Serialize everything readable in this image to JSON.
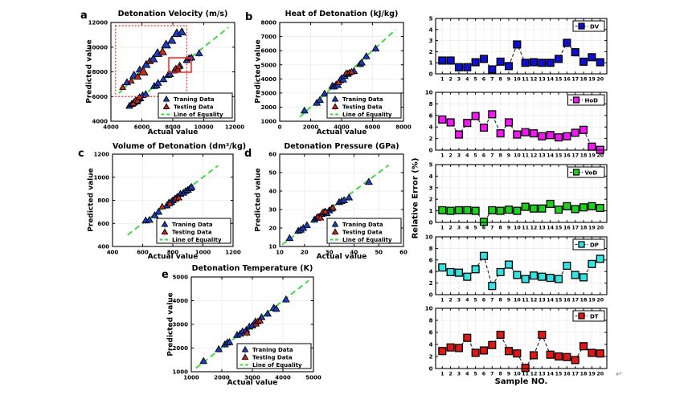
{
  "colors": {
    "train_marker": "#1f3dc2",
    "test_marker": "#c8281e",
    "train_stem": "#18c8e8",
    "test_stem": "#ff8c1e",
    "equality_line": "#3bda3b",
    "grid": "#ebebeb",
    "box": "#000000",
    "error_line": "#222222",
    "inset_box": "#ff2020",
    "dv": "#0f0fd0",
    "hod": "#f318f3",
    "vod": "#1fd01f",
    "dp": "#35e3e3",
    "dt": "#e01717"
  },
  "chart_data": {
    "scatter": [
      {
        "type": "scatter",
        "letter": "a",
        "title": "Detonation Velocity (m/s)",
        "xlabel": "Actual value",
        "ylabel": "Predicted value",
        "xlim": [
          4000,
          12000
        ],
        "ylim": [
          4000,
          12000
        ],
        "xticks": [
          4000,
          6000,
          8000,
          10000,
          12000
        ],
        "yticks": [
          4000,
          6000,
          8000,
          10000,
          12000
        ],
        "line_range": [
          5000,
          11600
        ],
        "legend": [
          "Traning Data",
          "Testing Data",
          "Line of Equality"
        ],
        "series": [
          {
            "name": "Traning Data",
            "points": [
              [
                5200,
                5250
              ],
              [
                5350,
                5400
              ],
              [
                5500,
                5550
              ],
              [
                5650,
                5600
              ],
              [
                5750,
                5800
              ],
              [
                5900,
                5850
              ],
              [
                6050,
                6100
              ],
              [
                6250,
                6200
              ],
              [
                6800,
                6850
              ],
              [
                6950,
                6900
              ],
              [
                7050,
                7100
              ],
              [
                7400,
                7400
              ],
              [
                7700,
                7750
              ],
              [
                7820,
                7800
              ],
              [
                8100,
                8100
              ],
              [
                8450,
                8500
              ],
              [
                8900,
                8950
              ],
              [
                9050,
                9100
              ],
              [
                9200,
                9150
              ],
              [
                9700,
                9500
              ]
            ]
          },
          {
            "name": "Testing Data",
            "points": [
              [
                5450,
                5450
              ],
              [
                5600,
                5700
              ],
              [
                5720,
                5650
              ],
              [
                5850,
                5950
              ],
              [
                8200,
                8280
              ],
              [
                8320,
                8220
              ],
              [
                8400,
                8420
              ]
            ]
          }
        ],
        "inset": {
          "zoom_rect_data": [
            4300,
            6000,
            8900,
            11740
          ],
          "source_rect_data": [
            7740,
            7968,
            9195,
            9139
          ],
          "points": [
            {
              "fx": 0.1,
              "fy": 0.13,
              "s": 6,
              "t": "test"
            },
            {
              "fx": 0.16,
              "fy": 0.2,
              "s": 7,
              "t": "train"
            },
            {
              "fx": 0.22,
              "fy": 0.22,
              "s": 6,
              "t": "test"
            },
            {
              "fx": 0.26,
              "fy": 0.3,
              "s": 8,
              "t": "train"
            },
            {
              "fx": 0.31,
              "fy": 0.28,
              "s": 7,
              "t": "test"
            },
            {
              "fx": 0.34,
              "fy": 0.38,
              "s": 7,
              "t": "train"
            },
            {
              "fx": 0.39,
              "fy": 0.35,
              "s": 9,
              "t": "test"
            },
            {
              "fx": 0.43,
              "fy": 0.45,
              "s": 8,
              "t": "train"
            },
            {
              "fx": 0.48,
              "fy": 0.5,
              "s": 7,
              "t": "test"
            },
            {
              "fx": 0.53,
              "fy": 0.53,
              "s": 8,
              "t": "train"
            },
            {
              "fx": 0.59,
              "fy": 0.61,
              "s": 9,
              "t": "train"
            },
            {
              "fx": 0.66,
              "fy": 0.63,
              "s": 8,
              "t": "test"
            },
            {
              "fx": 0.71,
              "fy": 0.73,
              "s": 9,
              "t": "train"
            },
            {
              "fx": 0.79,
              "fy": 0.79,
              "s": 8,
              "t": "train"
            },
            {
              "fx": 0.86,
              "fy": 0.89,
              "s": 9,
              "t": "train"
            },
            {
              "fx": 0.93,
              "fy": 0.91,
              "s": 8,
              "t": "train"
            }
          ]
        }
      },
      {
        "type": "scatter",
        "letter": "b",
        "title": "Heat of Detonation (kJ/kg)",
        "xlabel": "Actual value",
        "ylabel": "Predicted value",
        "xlim": [
          0,
          8000
        ],
        "ylim": [
          1000,
          8000
        ],
        "xticks": [
          0,
          2000,
          4000,
          6000,
          8000
        ],
        "yticks": [
          1000,
          2000,
          3000,
          4000,
          5000,
          6000,
          7000,
          8000
        ],
        "line_range": [
          1300,
          7500
        ],
        "legend": [
          "Traning Data",
          "Testing Data",
          "Line of Equality"
        ],
        "series": [
          {
            "name": "Traning Data",
            "points": [
              [
                1600,
                1750
              ],
              [
                2400,
                2300
              ],
              [
                2600,
                2500
              ],
              [
                2900,
                2950
              ],
              [
                3400,
                3500
              ],
              [
                3500,
                3450
              ],
              [
                3650,
                3600
              ],
              [
                3750,
                3550
              ],
              [
                3900,
                3900
              ],
              [
                4000,
                4050
              ],
              [
                4100,
                3950
              ],
              [
                4200,
                4200
              ],
              [
                4400,
                4350
              ],
              [
                4800,
                4550
              ],
              [
                5200,
                5050
              ],
              [
                5300,
                5150
              ],
              [
                5600,
                5600
              ],
              [
                6200,
                6150
              ]
            ]
          },
          {
            "name": "Testing Data",
            "points": [
              [
                3800,
                3750
              ],
              [
                4300,
                4400
              ],
              [
                4500,
                4450
              ],
              [
                4650,
                4500
              ]
            ]
          }
        ]
      },
      {
        "type": "scatter",
        "letter": "c",
        "title": "Volume of Detonation (dm³/kg)",
        "xlabel": "Actual value",
        "ylabel": "Predicted value",
        "xlim": [
          400,
          1200
        ],
        "ylim": [
          400,
          1200
        ],
        "xticks": [
          400,
          600,
          800,
          1000,
          1200
        ],
        "yticks": [
          400,
          600,
          800,
          1000,
          1200
        ],
        "line_range": [
          500,
          1100
        ],
        "legend": [
          "Traning Data",
          "Testing Data",
          "Line of Equality"
        ],
        "series": [
          {
            "name": "Traning Data",
            "points": [
              [
                620,
                625
              ],
              [
                645,
                630
              ],
              [
                680,
                670
              ],
              [
                705,
                700
              ],
              [
                760,
                755
              ],
              [
                775,
                780
              ],
              [
                790,
                785
              ],
              [
                800,
                800
              ],
              [
                815,
                815
              ],
              [
                830,
                830
              ],
              [
                850,
                855
              ],
              [
                870,
                865
              ],
              [
                885,
                880
              ],
              [
                900,
                890
              ],
              [
                915,
                905
              ],
              [
                925,
                915
              ]
            ]
          },
          {
            "name": "Testing Data",
            "points": [
              [
                730,
                745
              ],
              [
                780,
                772
              ],
              [
                820,
                812
              ],
              [
                840,
                822
              ]
            ]
          }
        ]
      },
      {
        "type": "scatter",
        "letter": "d",
        "title": "Detonation Pressure (GPa)",
        "xlabel": "Actual value",
        "ylabel": "Predicted value",
        "xlim": [
          10,
          60
        ],
        "ylim": [
          10,
          60
        ],
        "xticks": [
          10,
          20,
          30,
          40,
          50,
          60
        ],
        "yticks": [
          10,
          20,
          30,
          40,
          50,
          60
        ],
        "line_range": [
          11,
          54
        ],
        "legend": [
          "Traning Data",
          "Testing Data",
          "Line of Equality"
        ],
        "series": [
          {
            "name": "Traning Data",
            "points": [
              [
                14,
                14.5
              ],
              [
                17.5,
                18.5
              ],
              [
                18.5,
                19
              ],
              [
                19.5,
                20
              ],
              [
                21,
                21.5
              ],
              [
                24,
                24.5
              ],
              [
                25,
                25.5
              ],
              [
                26,
                26
              ],
              [
                27,
                27.5
              ],
              [
                28,
                28.5
              ],
              [
                29,
                28
              ],
              [
                30,
                29.5
              ],
              [
                31,
                30.5
              ],
              [
                34,
                34
              ],
              [
                35,
                34.5
              ],
              [
                36,
                35
              ],
              [
                38,
                36.5
              ],
              [
                46,
                45
              ]
            ]
          },
          {
            "name": "Testing Data",
            "points": [
              [
                25.5,
                26
              ],
              [
                26.5,
                25.5
              ],
              [
                27.5,
                28.5
              ],
              [
                28.5,
                29
              ],
              [
                31.5,
                31
              ]
            ]
          }
        ]
      },
      {
        "type": "scatter",
        "letter": "e",
        "title": "Detonation Temperature (K)",
        "xlabel": "Actual value",
        "ylabel": "Predicted value",
        "xlim": [
          1000,
          5000
        ],
        "ylim": [
          1000,
          5000
        ],
        "xticks": [
          1000,
          2000,
          3000,
          4000,
          5000
        ],
        "yticks": [
          1000,
          2000,
          3000,
          4000,
          5000
        ],
        "line_range": [
          1150,
          4850
        ],
        "legend": [
          "Traning Data",
          "Testing Data",
          "Line of Equality"
        ],
        "series": [
          {
            "name": "Traning Data",
            "points": [
              [
                1400,
                1450
              ],
              [
                1900,
                1950
              ],
              [
                2100,
                2150
              ],
              [
                2180,
                2230
              ],
              [
                2250,
                2250
              ],
              [
                2500,
                2550
              ],
              [
                2600,
                2600
              ],
              [
                2680,
                2700
              ],
              [
                2800,
                2760
              ],
              [
                2900,
                2900
              ],
              [
                3000,
                2950
              ],
              [
                3100,
                3120
              ],
              [
                3300,
                3300
              ],
              [
                3500,
                3450
              ],
              [
                3700,
                3700
              ],
              [
                3780,
                3650
              ],
              [
                4100,
                4050
              ]
            ]
          },
          {
            "name": "Testing Data",
            "points": [
              [
                2820,
                2640
              ],
              [
                3120,
                3020
              ],
              [
                3180,
                3120
              ],
              [
                3250,
                3150
              ]
            ]
          }
        ]
      }
    ],
    "error_common": {
      "xlabel": "Sample NO.",
      "ylabel": "Relative Error (%)",
      "samples": [
        1,
        2,
        3,
        4,
        5,
        6,
        7,
        8,
        9,
        10,
        11,
        12,
        13,
        14,
        15,
        16,
        17,
        18,
        19,
        20
      ]
    },
    "error": [
      {
        "type": "line",
        "label": "DV",
        "color_key": "dv",
        "ylim": [
          0,
          5
        ],
        "yticks": [
          0,
          1,
          2,
          3,
          4,
          5
        ],
        "values": [
          1.2,
          1.2,
          0.6,
          0.6,
          1.05,
          1.35,
          0.4,
          1.1,
          0.7,
          2.65,
          1.0,
          1.05,
          1.0,
          1.0,
          1.35,
          2.8,
          1.95,
          1.1,
          1.5,
          1.05
        ]
      },
      {
        "type": "line",
        "label": "HoD",
        "color_key": "hod",
        "ylim": [
          0,
          10
        ],
        "yticks": [
          0,
          2,
          4,
          6,
          8,
          10
        ],
        "values": [
          5.3,
          4.8,
          2.7,
          4.7,
          5.9,
          3.9,
          6.2,
          2.9,
          4.8,
          2.7,
          3.1,
          2.9,
          2.4,
          2.6,
          2.2,
          2.4,
          3.0,
          3.5,
          0.6,
          0.05
        ]
      },
      {
        "type": "line",
        "label": "VoD",
        "color_key": "vod",
        "ylim": [
          0,
          5
        ],
        "yticks": [
          0,
          1,
          2,
          3,
          4,
          5
        ],
        "values": [
          1.05,
          1.0,
          1.05,
          1.05,
          1.0,
          0.05,
          1.05,
          1.0,
          1.1,
          1.0,
          1.35,
          1.2,
          1.2,
          1.6,
          1.1,
          1.4,
          1.15,
          1.3,
          1.4,
          1.25
        ]
      },
      {
        "type": "line",
        "label": "DP",
        "color_key": "dp",
        "ylim": [
          0,
          10
        ],
        "yticks": [
          0,
          2,
          4,
          6,
          8,
          10
        ],
        "values": [
          4.7,
          3.9,
          3.8,
          3.1,
          4.4,
          6.7,
          1.5,
          3.9,
          5.2,
          3.4,
          2.7,
          3.3,
          3.1,
          2.9,
          2.7,
          5.0,
          3.4,
          3.0,
          5.3,
          6.2
        ]
      },
      {
        "type": "line",
        "label": "DT",
        "color_key": "dt",
        "ylim": [
          0,
          10
        ],
        "yticks": [
          0,
          2,
          4,
          6,
          8,
          10
        ],
        "values": [
          2.9,
          3.5,
          3.4,
          5.1,
          2.6,
          3.0,
          3.9,
          5.6,
          2.9,
          2.5,
          0.1,
          2.2,
          5.6,
          2.3,
          2.0,
          1.9,
          1.4,
          3.7,
          2.6,
          2.5
        ]
      }
    ]
  },
  "figure": {
    "return_mark": "↵"
  }
}
